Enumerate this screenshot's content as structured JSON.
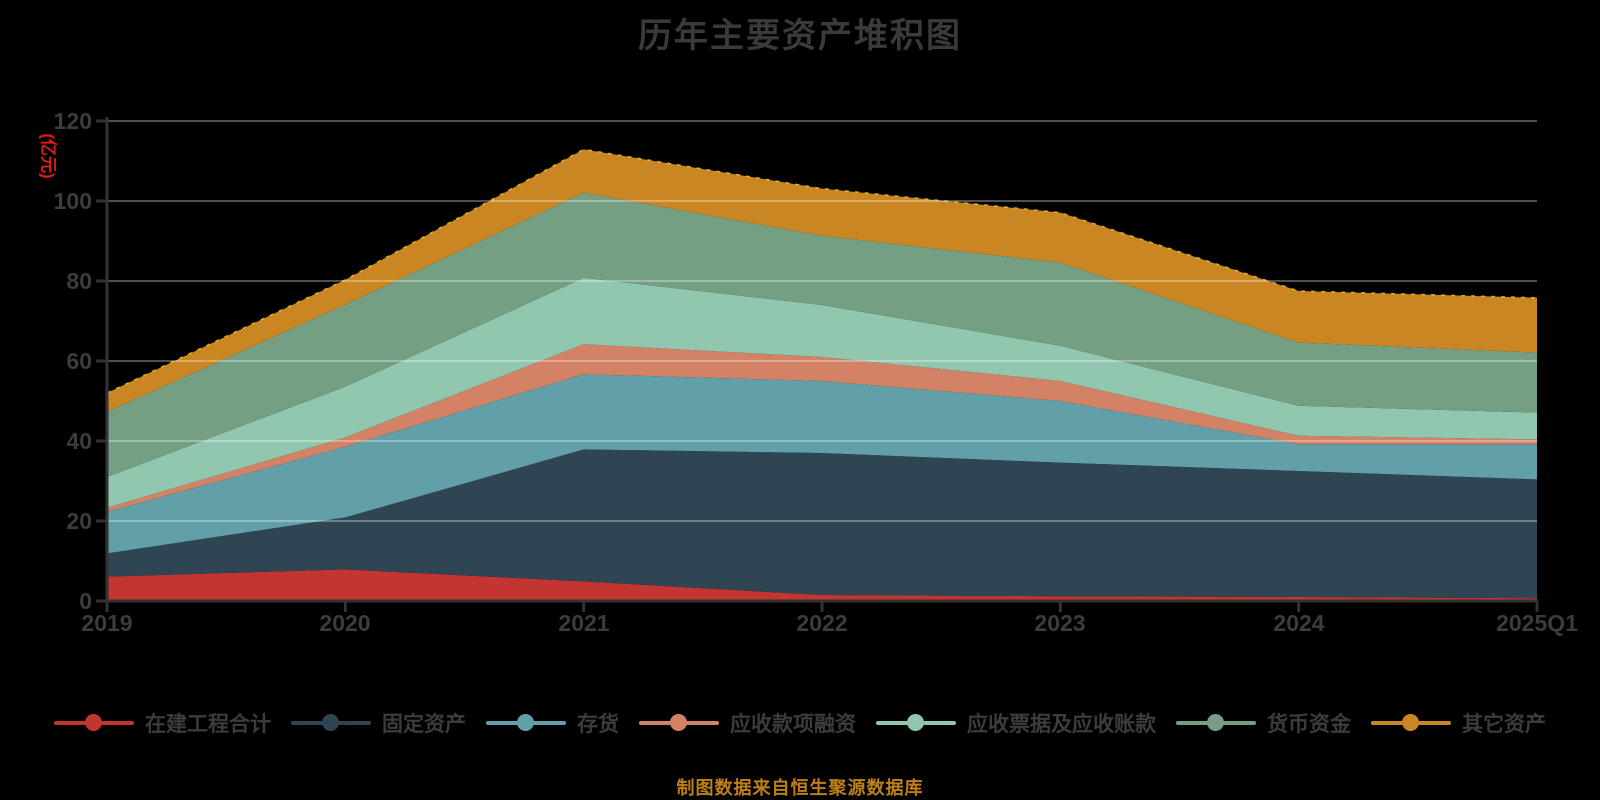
{
  "title": "历年主要资产堆积图",
  "footer": "制图数据来自恒生聚源数据库",
  "colors": {
    "background": "#000000",
    "text": "#3c3c3c",
    "axis": "#333333",
    "grid": "rgba(255,255,255,0.42)",
    "total_edge_dash": "#edc427",
    "unit_label": "#e31a1a",
    "footer_text": "#bd8018"
  },
  "chart_data": {
    "type": "area",
    "stacked": true,
    "title": "历年主要资产堆积图",
    "xlabel": "",
    "ylabel": "(亿元)",
    "ylim": [
      0,
      120
    ],
    "yticks": [
      0,
      20,
      40,
      60,
      80,
      100,
      120
    ],
    "grid": true,
    "legend_position": "bottom",
    "categories": [
      "2019",
      "2020",
      "2021",
      "2022",
      "2023",
      "2024",
      "2025Q1"
    ],
    "series": [
      {
        "name": "在建工程合计",
        "color": "#c23531",
        "values": [
          6.1,
          7.9,
          4.9,
          1.5,
          1.2,
          1.0,
          0.7
        ]
      },
      {
        "name": "固定资产",
        "color": "#2f4554",
        "values": [
          5.8,
          13.0,
          33.0,
          35.5,
          33.4,
          31.5,
          29.7
        ]
      },
      {
        "name": "存货",
        "color": "#61a0a8",
        "values": [
          10.4,
          17.7,
          18.8,
          18.0,
          15.4,
          6.7,
          8.8
        ]
      },
      {
        "name": "应收款项融资",
        "color": "#d48265",
        "values": [
          1.0,
          2.3,
          7.5,
          6.0,
          5.0,
          2.1,
          1.2
        ]
      },
      {
        "name": "应收票据及应收账款",
        "color": "#91c7ae",
        "values": [
          7.7,
          12.7,
          16.6,
          13.0,
          8.8,
          7.5,
          6.7
        ]
      },
      {
        "name": "货币资金",
        "color": "#749f83",
        "values": [
          16.3,
          20.5,
          21.3,
          17.3,
          20.8,
          15.8,
          15.0
        ]
      },
      {
        "name": "其它资产",
        "color": "#ca8622",
        "values": [
          4.7,
          6.2,
          10.8,
          11.8,
          12.5,
          12.9,
          13.7
        ]
      }
    ],
    "stack_totals": [
      52.0,
      80.3,
      112.9,
      103.1,
      97.1,
      77.5,
      75.8
    ]
  }
}
